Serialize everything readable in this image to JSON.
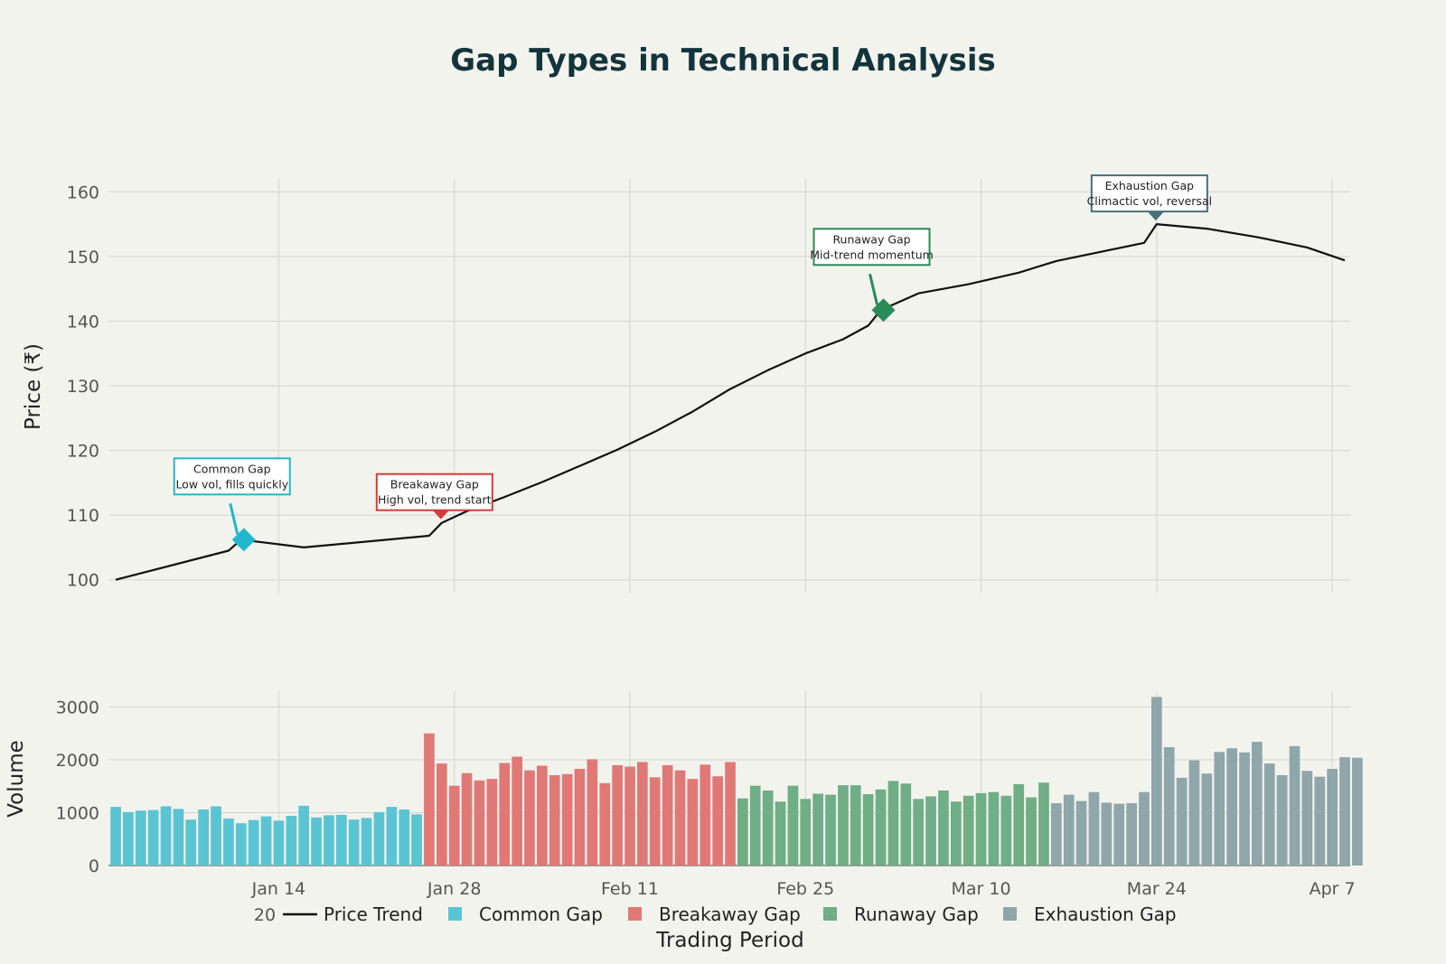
{
  "chart_data": {
    "type": "line+bar",
    "title": "Gap Types in Technical Analysis",
    "xlabel": "Trading Period",
    "x_tick_labels": [
      "Jan 14",
      "Jan 28",
      "Feb 11",
      "Feb 25",
      "Mar 10",
      "Mar 24",
      "Apr 7"
    ],
    "x_tick_dates": [
      "2024-01-14",
      "2024-01-28",
      "2024-02-11",
      "2024-02-25",
      "2024-03-10",
      "2024-03-24",
      "2024-04-07"
    ],
    "x_range": [
      "2024-01-01",
      "2024-04-08"
    ],
    "x_year_label": "20",
    "grid": true,
    "price_panel": {
      "ylabel": "Price (₹)",
      "ylim": [
        98,
        162
      ],
      "y_ticks": [
        100,
        110,
        120,
        130,
        140,
        150,
        160
      ],
      "series": {
        "name": "Price Trend",
        "color": "#111111",
        "points": [
          [
            "2024-01-01",
            100.0
          ],
          [
            "2024-01-10",
            104.5
          ],
          [
            "2024-01-11",
            106.2
          ],
          [
            "2024-01-16",
            105.0
          ],
          [
            "2024-01-26",
            106.8
          ],
          [
            "2024-01-27",
            108.8
          ],
          [
            "2024-01-29",
            110.6
          ],
          [
            "2024-02-01",
            112.8
          ],
          [
            "2024-02-04",
            115.1
          ],
          [
            "2024-02-07",
            117.6
          ],
          [
            "2024-02-10",
            120.1
          ],
          [
            "2024-02-13",
            122.9
          ],
          [
            "2024-02-16",
            126.0
          ],
          [
            "2024-02-19",
            129.5
          ],
          [
            "2024-02-22",
            132.4
          ],
          [
            "2024-02-25",
            135.0
          ],
          [
            "2024-02-28",
            137.2
          ],
          [
            "2024-03-01",
            139.3
          ],
          [
            "2024-03-02",
            141.7
          ],
          [
            "2024-03-05",
            144.3
          ],
          [
            "2024-03-09",
            145.7
          ],
          [
            "2024-03-13",
            147.5
          ],
          [
            "2024-03-16",
            149.3
          ],
          [
            "2024-03-20",
            150.9
          ],
          [
            "2024-03-23",
            152.1
          ],
          [
            "2024-03-24",
            155.0
          ],
          [
            "2024-03-28",
            154.3
          ],
          [
            "2024-04-01",
            153.0
          ],
          [
            "2024-04-05",
            151.4
          ],
          [
            "2024-04-08",
            149.4
          ]
        ]
      }
    },
    "volume_panel": {
      "ylabel": "Volume",
      "ylim": [
        0,
        3300
      ],
      "y_ticks": [
        0,
        1000,
        2000,
        3000
      ],
      "start_date": "2024-01-01",
      "groups": [
        {
          "name": "Common Gap",
          "color": "#5bc4d3",
          "values": [
            1110,
            1010,
            1040,
            1050,
            1120,
            1070,
            870,
            1060,
            1120,
            890,
            800,
            860,
            930,
            850,
            940,
            1130,
            910,
            950,
            960,
            870,
            900,
            1010,
            1110,
            1060,
            970
          ]
        },
        {
          "name": "Breakaway Gap",
          "color": "#e07976",
          "values": [
            2500,
            1930,
            1510,
            1750,
            1610,
            1640,
            1940,
            2060,
            1800,
            1890,
            1710,
            1730,
            1830,
            2010,
            1560,
            1900,
            1870,
            1960,
            1670,
            1900,
            1800,
            1640,
            1910,
            1690,
            1960
          ]
        },
        {
          "name": "Runaway Gap",
          "color": "#6fae86",
          "values": [
            1270,
            1510,
            1420,
            1210,
            1510,
            1260,
            1360,
            1340,
            1520,
            1520,
            1350,
            1440,
            1600,
            1550,
            1260,
            1310,
            1420,
            1210,
            1320,
            1370,
            1390,
            1320,
            1540,
            1290,
            1570
          ]
        },
        {
          "name": "Exhaustion Gap",
          "color": "#8fa6aa",
          "values": [
            1180,
            1340,
            1220,
            1390,
            1190,
            1170,
            1180,
            1390,
            3190,
            2240,
            1660,
            1990,
            1740,
            2150,
            2220,
            2140,
            2340,
            1930,
            1710,
            2260,
            1790,
            1680,
            1830,
            2050,
            2040
          ]
        }
      ]
    },
    "annotations": [
      {
        "lines": [
          "Common Gap",
          "Low vol, fills quickly"
        ],
        "color": "#22b7cc",
        "x": "2024-01-11",
        "y": 106.2,
        "marker": "diamond",
        "arrow": true
      },
      {
        "lines": [
          "Breakaway Gap",
          "High vol, trend start"
        ],
        "color": "#d43c3c",
        "x": "2024-01-27",
        "y": 108.8,
        "marker": "triangle",
        "arrow": false
      },
      {
        "lines": [
          "Runaway Gap",
          "Mid-trend momentum"
        ],
        "color": "#2a8a58",
        "x": "2024-03-02",
        "y": 141.7,
        "marker": "diamond",
        "arrow": true
      },
      {
        "lines": [
          "Exhaustion Gap",
          "Climactic vol, reversal"
        ],
        "color": "#4b6f78",
        "x": "2024-03-24",
        "y": 155.0,
        "marker": "triangle",
        "arrow": false
      }
    ],
    "legend": {
      "placement": "bottom",
      "items": [
        {
          "label": "Price Trend",
          "kind": "line",
          "color": "#111111"
        },
        {
          "label": "Common Gap",
          "kind": "square",
          "color": "#5bc4d3"
        },
        {
          "label": "Breakaway Gap",
          "kind": "square",
          "color": "#e07976"
        },
        {
          "label": "Runaway Gap",
          "kind": "square",
          "color": "#6fae86"
        },
        {
          "label": "Exhaustion Gap",
          "kind": "square",
          "color": "#8fa6aa"
        }
      ]
    }
  }
}
